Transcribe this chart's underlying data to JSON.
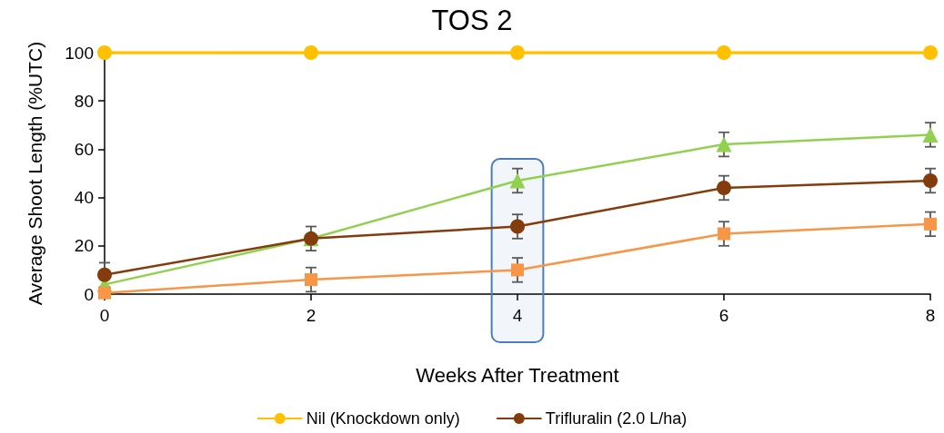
{
  "chart_data": {
    "type": "line",
    "title": "TOS 2",
    "xlabel": "Weeks After Treatment",
    "ylabel": "Average Shoot Length (%UTC)",
    "x": [
      0,
      2,
      4,
      6,
      8
    ],
    "series": [
      {
        "name": "Nil (Knockdown only)",
        "color": "#ffc000",
        "marker": "circle",
        "values": [
          100,
          100,
          100,
          100,
          100
        ]
      },
      {
        "color": "#92d050",
        "marker": "triangle",
        "values": [
          4,
          23,
          47,
          62,
          66
        ],
        "errors": [
          null,
          null,
          5,
          5,
          5
        ]
      },
      {
        "color": "#f79646",
        "marker": "square",
        "values": [
          0.5,
          6,
          10,
          25,
          29
        ],
        "errors": [
          null,
          5,
          5,
          5,
          5
        ]
      },
      {
        "name": "Trifluralin (2.0 L/ha)",
        "color": "#843c0c",
        "marker": "circle",
        "values": [
          8,
          23,
          28,
          44,
          47
        ],
        "errors": [
          5,
          5,
          5,
          5,
          5
        ]
      }
    ],
    "xlim": [
      0,
      8
    ],
    "xticks": [
      0,
      2,
      4,
      6,
      8
    ],
    "ylim": [
      0,
      100
    ],
    "yticks": [
      0,
      20,
      40,
      60,
      80,
      100
    ],
    "bands": [
      {
        "axis": "x",
        "from": 3.75,
        "to": 4.25,
        "color": "#4a7ebb"
      }
    ],
    "grid": false,
    "legend": "bottom",
    "line_style": "solid"
  }
}
